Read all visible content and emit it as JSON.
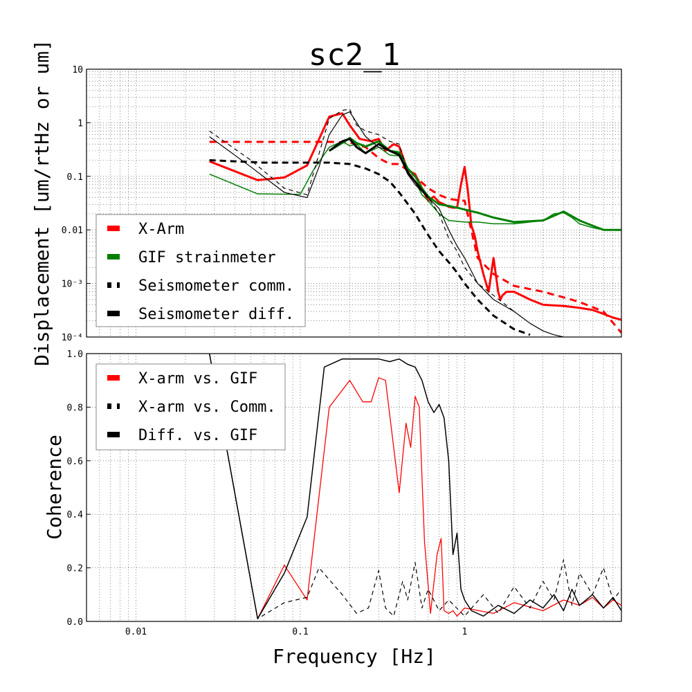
{
  "chart_data": [
    {
      "type": "line",
      "title": "sc2_1",
      "xlabel": "",
      "ylabel": "Displacement [um/rtHz or um]",
      "xscale": "log",
      "yscale": "log",
      "xlim": [
        0.005,
        9
      ],
      "ylim": [
        0.0001,
        10
      ],
      "grid": true,
      "legend_position": "lower-left",
      "yticks": [
        {
          "value": 10,
          "label": "10"
        },
        {
          "value": 1,
          "label": "1"
        },
        {
          "value": 0.1,
          "label": "0.1"
        },
        {
          "value": 0.01,
          "label": "0.01"
        },
        {
          "value": 0.001,
          "label": "10⁻³"
        },
        {
          "value": 0.0001,
          "label": "10⁻⁴"
        }
      ],
      "legend": [
        "X-Arm",
        "GIF strainmeter",
        "Seismometer comm.",
        "Seismometer diff."
      ],
      "series": [
        {
          "name": "X-Arm",
          "color": "#ff0000",
          "width": 3,
          "dash": "",
          "x": [
            0.028,
            0.055,
            0.08,
            0.11,
            0.15,
            0.18,
            0.2,
            0.23,
            0.27,
            0.3,
            0.33,
            0.37,
            0.4,
            0.45,
            0.5,
            0.55,
            0.6,
            0.65,
            0.7,
            0.75,
            0.8,
            0.85,
            0.9,
            0.95,
            1.0,
            1.05,
            1.1,
            1.15,
            1.2,
            1.3,
            1.4,
            1.5,
            1.6,
            1.65,
            1.7,
            1.8,
            2.0,
            2.5,
            3.0,
            4.0,
            5.0,
            6.0,
            7.0,
            8.0,
            9.0
          ],
          "y": [
            0.19,
            0.085,
            0.095,
            0.16,
            1.3,
            1.5,
            0.9,
            0.5,
            0.45,
            0.5,
            0.3,
            0.4,
            0.36,
            0.13,
            0.11,
            0.06,
            0.035,
            0.042,
            0.033,
            0.03,
            0.027,
            0.026,
            0.026,
            0.07,
            0.15,
            0.05,
            0.012,
            0.008,
            0.004,
            0.0015,
            0.0007,
            0.003,
            0.0007,
            0.0005,
            0.0006,
            0.0007,
            0.0007,
            0.0005,
            0.0004,
            0.00038,
            0.00035,
            0.00032,
            0.00027,
            0.00023,
            0.00021
          ]
        },
        {
          "name": "X-Arm (dashed)",
          "color": "#ff0000",
          "width": 3,
          "dash": "10,7",
          "x": [
            0.028,
            0.06,
            0.1,
            0.15,
            0.2,
            0.25,
            0.3,
            0.35,
            0.4,
            0.5,
            0.6,
            0.7,
            0.8,
            0.9,
            1.0,
            1.2,
            1.5,
            2.0,
            3.0,
            4.0,
            5.0,
            7.0,
            9.0
          ],
          "y": [
            0.44,
            0.44,
            0.44,
            0.44,
            0.43,
            0.35,
            0.22,
            0.17,
            0.17,
            0.1,
            0.06,
            0.045,
            0.038,
            0.036,
            0.035,
            0.003,
            0.0015,
            0.0009,
            0.0007,
            0.00055,
            0.00045,
            0.0003,
            0.00012
          ]
        },
        {
          "name": "GIF strainmeter",
          "color": "#008000",
          "width": 1.5,
          "dash": "",
          "x": [
            0.028,
            0.055,
            0.1,
            0.12,
            0.15,
            0.18,
            0.2,
            0.22,
            0.25,
            0.3,
            0.35,
            0.4,
            0.45,
            0.5,
            0.55,
            0.6,
            0.7,
            0.8,
            1.0,
            1.2,
            1.5,
            2.0,
            2.5,
            3.0,
            3.5,
            4.0,
            4.5,
            5.0,
            6.0,
            7.0,
            8.0,
            9.0
          ],
          "y": [
            0.11,
            0.047,
            0.046,
            0.13,
            0.35,
            0.45,
            0.37,
            0.4,
            0.27,
            0.35,
            0.25,
            0.24,
            0.12,
            0.08,
            0.045,
            0.035,
            0.02,
            0.015,
            0.014,
            0.014,
            0.013,
            0.013,
            0.014,
            0.015,
            0.02,
            0.021,
            0.017,
            0.013,
            0.011,
            0.01,
            0.01,
            0.01
          ]
        },
        {
          "name": "GIF strainmeter (thick)",
          "color": "#008000",
          "width": 3,
          "dash": "",
          "x": [
            0.15,
            0.18,
            0.2,
            0.22,
            0.25,
            0.3,
            0.35,
            0.4,
            0.45,
            0.5,
            0.55,
            0.6,
            0.7,
            0.8,
            0.9,
            1.0,
            1.2,
            1.5,
            2.0,
            3.0,
            4.0,
            5.0,
            6.0,
            7.0,
            8.0,
            9.0
          ],
          "y": [
            0.3,
            0.42,
            0.52,
            0.42,
            0.36,
            0.45,
            0.3,
            0.28,
            0.14,
            0.1,
            0.06,
            0.042,
            0.03,
            0.028,
            0.026,
            0.024,
            0.021,
            0.017,
            0.014,
            0.015,
            0.022,
            0.015,
            0.012,
            0.01,
            0.01,
            0.01
          ]
        },
        {
          "name": "Seismometer comm.",
          "color": "#000000",
          "width": 1.2,
          "dash": "6,5",
          "x": [
            0.028,
            0.05,
            0.08,
            0.11,
            0.15,
            0.18,
            0.2,
            0.22,
            0.25,
            0.3,
            0.35,
            0.4,
            0.45,
            0.5,
            0.6,
            0.7,
            0.8,
            0.9,
            1.0,
            1.2,
            1.5,
            2.0
          ],
          "y": [
            0.7,
            0.2,
            0.06,
            0.045,
            1.2,
            1.7,
            1.8,
            0.9,
            0.7,
            0.6,
            0.45,
            0.4,
            0.12,
            0.08,
            0.04,
            0.02,
            0.007,
            0.004,
            0.002,
            0.001,
            0.0006,
            0.0003
          ]
        },
        {
          "name": "Seismometer comm. (thick)",
          "color": "#000000",
          "width": 3,
          "dash": "9,6",
          "x": [
            0.028,
            0.06,
            0.1,
            0.15,
            0.2,
            0.25,
            0.3,
            0.35,
            0.4,
            0.5,
            0.6,
            0.7,
            0.8,
            0.9,
            1.0,
            1.2,
            1.5,
            2.0,
            2.5
          ],
          "y": [
            0.2,
            0.18,
            0.18,
            0.18,
            0.17,
            0.14,
            0.11,
            0.08,
            0.05,
            0.02,
            0.008,
            0.004,
            0.0025,
            0.0016,
            0.001,
            0.0005,
            0.00025,
            0.00014,
            0.00011
          ]
        },
        {
          "name": "Seismometer diff.",
          "color": "#000000",
          "width": 1.2,
          "dash": "",
          "x": [
            0.028,
            0.05,
            0.08,
            0.11,
            0.13,
            0.15,
            0.18,
            0.2,
            0.25,
            0.3,
            0.35,
            0.4,
            0.45,
            0.5,
            0.6,
            0.7,
            0.8,
            0.9,
            1.0,
            1.2,
            1.5,
            2.0,
            2.5,
            3.0,
            3.5,
            4.0
          ],
          "y": [
            0.55,
            0.15,
            0.05,
            0.04,
            0.15,
            0.6,
            1.4,
            1.6,
            0.55,
            0.35,
            0.3,
            0.25,
            0.11,
            0.07,
            0.04,
            0.025,
            0.01,
            0.005,
            0.003,
            0.001,
            0.0005,
            0.0003,
            0.00018,
            0.00013,
            0.00011,
            0.0001
          ]
        },
        {
          "name": "Seismometer diff. (thick)",
          "color": "#000000",
          "width": 3,
          "dash": "",
          "x": [
            0.15,
            0.18,
            0.2,
            0.22,
            0.25,
            0.3,
            0.35,
            0.4,
            0.45,
            0.5,
            0.55,
            0.6
          ],
          "y": [
            0.3,
            0.45,
            0.5,
            0.35,
            0.27,
            0.4,
            0.3,
            0.25,
            0.12,
            0.08,
            0.055,
            0.04
          ]
        }
      ]
    },
    {
      "type": "line",
      "title": "",
      "xlabel": "Frequency [Hz]",
      "ylabel": "Coherence",
      "xscale": "log",
      "yscale": "linear",
      "xlim": [
        0.005,
        9
      ],
      "ylim": [
        0,
        1
      ],
      "grid": true,
      "legend_position": "upper-left",
      "xticks": [
        {
          "value": 0.01,
          "label": "0.01"
        },
        {
          "value": 0.1,
          "label": "0.1"
        },
        {
          "value": 1,
          "label": "1"
        }
      ],
      "yticks": [
        {
          "value": 1.0,
          "label": "1.0"
        },
        {
          "value": 0.8,
          "label": "0.8"
        },
        {
          "value": 0.6,
          "label": "0.6"
        },
        {
          "value": 0.4,
          "label": "0.4"
        },
        {
          "value": 0.2,
          "label": "0.2"
        },
        {
          "value": 0.0,
          "label": "0.0"
        }
      ],
      "legend": [
        "X-arm vs. GIF",
        "X-arm vs. Comm.",
        "Diff. vs. GIF"
      ],
      "series": [
        {
          "name": "X-arm vs. GIF",
          "color": "#ff0000",
          "width": 1.3,
          "dash": "",
          "x": [
            0.028,
            0.055,
            0.08,
            0.11,
            0.15,
            0.2,
            0.24,
            0.27,
            0.3,
            0.33,
            0.37,
            0.4,
            0.44,
            0.47,
            0.5,
            0.53,
            0.57,
            0.62,
            0.68,
            0.72,
            0.75,
            0.8,
            0.85,
            0.9,
            1.0,
            1.5,
            2.0,
            3.0,
            4.0,
            5.0,
            6.0,
            7.0,
            8.0,
            9.0
          ],
          "y": [
            1.0,
            0.01,
            0.21,
            0.08,
            0.8,
            0.9,
            0.82,
            0.82,
            0.91,
            0.9,
            0.65,
            0.48,
            0.74,
            0.65,
            0.84,
            0.8,
            0.3,
            0.03,
            0.25,
            0.31,
            0.04,
            0.03,
            0.04,
            0.02,
            0.05,
            0.03,
            0.07,
            0.04,
            0.08,
            0.06,
            0.09,
            0.05,
            0.08,
            0.06
          ]
        },
        {
          "name": "X-arm vs. Comm.",
          "color": "#000000",
          "width": 1.2,
          "dash": "6,5",
          "x": [
            0.028,
            0.055,
            0.08,
            0.11,
            0.13,
            0.18,
            0.22,
            0.26,
            0.3,
            0.33,
            0.37,
            0.42,
            0.45,
            0.5,
            0.55,
            0.6,
            0.7,
            0.8,
            1.0,
            1.3,
            1.6,
            2.0,
            2.5,
            3.0,
            3.5,
            4.0,
            4.5,
            5.0,
            6.0,
            7.0,
            8.0,
            9.0
          ],
          "y": [
            1.0,
            0.01,
            0.07,
            0.09,
            0.2,
            0.1,
            0.03,
            0.05,
            0.19,
            0.05,
            0.02,
            0.15,
            0.08,
            0.22,
            0.05,
            0.12,
            0.04,
            0.08,
            0.02,
            0.1,
            0.03,
            0.13,
            0.05,
            0.15,
            0.08,
            0.23,
            0.06,
            0.18,
            0.1,
            0.2,
            0.08,
            0.12
          ]
        },
        {
          "name": "Diff. vs. GIF",
          "color": "#000000",
          "width": 1.5,
          "dash": "",
          "x": [
            0.028,
            0.055,
            0.08,
            0.11,
            0.14,
            0.18,
            0.2,
            0.25,
            0.3,
            0.35,
            0.4,
            0.45,
            0.5,
            0.55,
            0.6,
            0.65,
            0.7,
            0.75,
            0.8,
            0.85,
            0.9,
            0.95,
            1.0,
            1.1,
            1.3,
            1.6,
            2.0,
            2.5,
            3.0,
            3.5,
            4.0,
            4.5,
            5.0,
            6.0,
            7.0,
            8.0,
            9.0
          ],
          "y": [
            1.0,
            0.01,
            0.18,
            0.39,
            0.95,
            0.98,
            0.98,
            0.98,
            0.98,
            0.97,
            0.98,
            0.96,
            0.95,
            0.9,
            0.82,
            0.78,
            0.81,
            0.76,
            0.6,
            0.25,
            0.33,
            0.12,
            0.08,
            0.04,
            0.02,
            0.06,
            0.03,
            0.08,
            0.05,
            0.1,
            0.04,
            0.12,
            0.06,
            0.1,
            0.05,
            0.09,
            0.04
          ]
        }
      ]
    }
  ]
}
